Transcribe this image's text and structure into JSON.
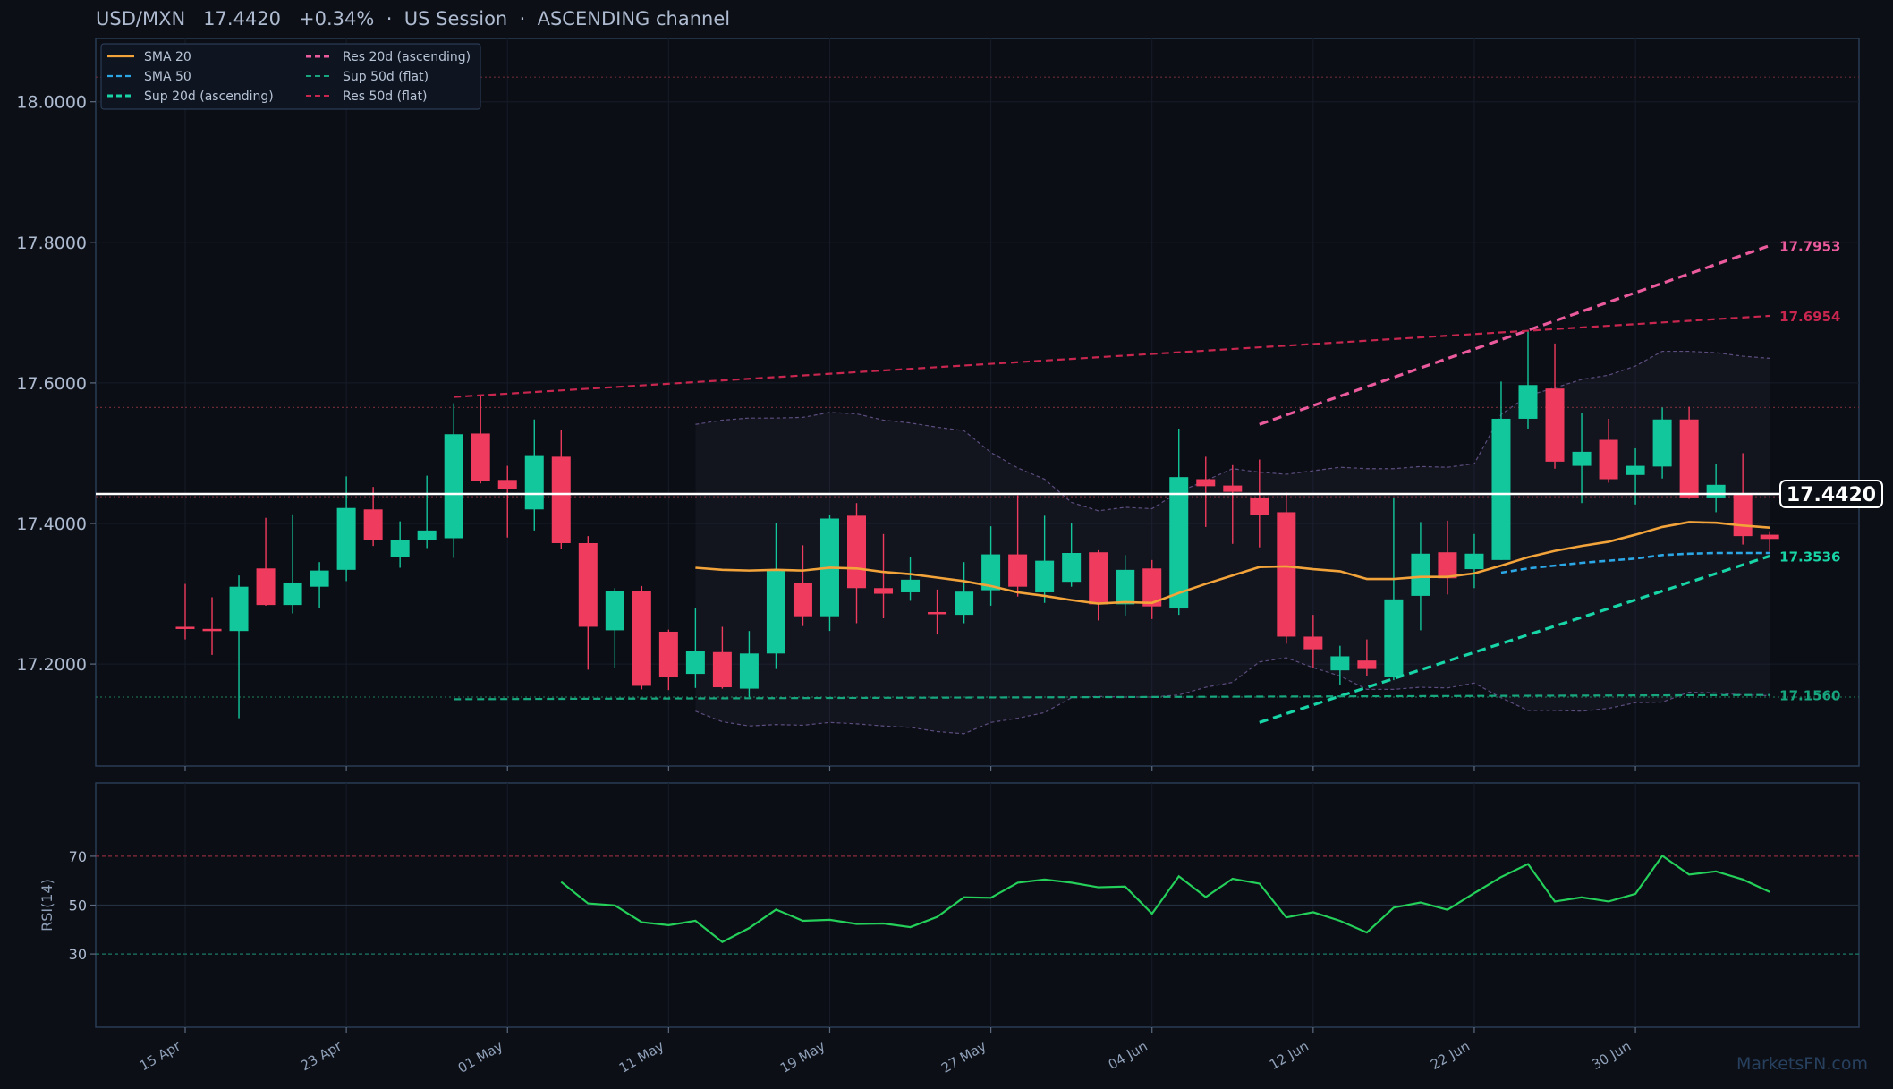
{
  "header": {
    "title": "USD/MXN   17.4420   +0.34%  ·  US Session  ·  ASCENDING channel"
  },
  "watermark": "MarketsFN.com",
  "colors": {
    "background": "#0c0f16",
    "panel_border": "#2a3b55",
    "up": "#13c79c",
    "down": "#ef3b5d",
    "sma20": "#f2a33a",
    "sma50": "#2ba7e6",
    "support_ascending": "#17d5a6",
    "resistance_ascending": "#ea5a9c",
    "support_flat": "#17a77f",
    "resistance_flat": "#c8264f",
    "rsi": "#24d05a",
    "last_price": "#ffffff"
  },
  "chart_data": [
    {
      "type": "candlestick",
      "title": "USD/MXN   17.4420   +0.34%  ·  US Session  ·  ASCENDING channel",
      "x_tick_labels": [
        "15 Apr",
        "23 Apr",
        "01 May",
        "11 May",
        "19 May",
        "27 May",
        "04 Jun",
        "12 Jun",
        "22 Jun",
        "30 Jun"
      ],
      "x_tick_index": [
        0,
        6,
        12,
        18,
        24,
        30,
        36,
        42,
        48,
        54
      ],
      "ylim": [
        17.055,
        18.09
      ],
      "y_ticks": [
        "17.2000",
        "17.4000",
        "17.6000",
        "17.8000",
        "18.0000"
      ],
      "last_price": 17.442,
      "last_price_label": "17.4420",
      "candles": [
        {
          "o": 17.253,
          "h": 17.314,
          "l": 17.235,
          "c": 17.25
        },
        {
          "o": 17.25,
          "h": 17.295,
          "l": 17.213,
          "c": 17.248
        },
        {
          "o": 17.247,
          "h": 17.326,
          "l": 17.123,
          "c": 17.31
        },
        {
          "o": 17.336,
          "h": 17.408,
          "l": 17.283,
          "c": 17.284
        },
        {
          "o": 17.284,
          "h": 17.413,
          "l": 17.272,
          "c": 17.316
        },
        {
          "o": 17.31,
          "h": 17.345,
          "l": 17.28,
          "c": 17.333
        },
        {
          "o": 17.334,
          "h": 17.467,
          "l": 17.318,
          "c": 17.422
        },
        {
          "o": 17.42,
          "h": 17.452,
          "l": 17.368,
          "c": 17.377
        },
        {
          "o": 17.352,
          "h": 17.403,
          "l": 17.337,
          "c": 17.376
        },
        {
          "o": 17.377,
          "h": 17.468,
          "l": 17.365,
          "c": 17.39
        },
        {
          "o": 17.379,
          "h": 17.571,
          "l": 17.351,
          "c": 17.527
        },
        {
          "o": 17.528,
          "h": 17.582,
          "l": 17.457,
          "c": 17.461
        },
        {
          "o": 17.462,
          "h": 17.482,
          "l": 17.38,
          "c": 17.449
        },
        {
          "o": 17.42,
          "h": 17.548,
          "l": 17.39,
          "c": 17.496
        },
        {
          "o": 17.495,
          "h": 17.533,
          "l": 17.364,
          "c": 17.372
        },
        {
          "o": 17.372,
          "h": 17.382,
          "l": 17.192,
          "c": 17.253
        },
        {
          "o": 17.248,
          "h": 17.308,
          "l": 17.195,
          "c": 17.304
        },
        {
          "o": 17.304,
          "h": 17.311,
          "l": 17.164,
          "c": 17.169
        },
        {
          "o": 17.246,
          "h": 17.249,
          "l": 17.163,
          "c": 17.181
        },
        {
          "o": 17.186,
          "h": 17.28,
          "l": 17.166,
          "c": 17.218
        },
        {
          "o": 17.217,
          "h": 17.253,
          "l": 17.165,
          "c": 17.167
        },
        {
          "o": 17.165,
          "h": 17.247,
          "l": 17.153,
          "c": 17.215
        },
        {
          "o": 17.215,
          "h": 17.401,
          "l": 17.193,
          "c": 17.333
        },
        {
          "o": 17.315,
          "h": 17.369,
          "l": 17.254,
          "c": 17.268
        },
        {
          "o": 17.268,
          "h": 17.412,
          "l": 17.247,
          "c": 17.407
        },
        {
          "o": 17.411,
          "h": 17.429,
          "l": 17.258,
          "c": 17.308
        },
        {
          "o": 17.308,
          "h": 17.385,
          "l": 17.265,
          "c": 17.3
        },
        {
          "o": 17.302,
          "h": 17.352,
          "l": 17.29,
          "c": 17.32
        },
        {
          "o": 17.274,
          "h": 17.306,
          "l": 17.242,
          "c": 17.271
        },
        {
          "o": 17.27,
          "h": 17.345,
          "l": 17.258,
          "c": 17.303
        },
        {
          "o": 17.305,
          "h": 17.396,
          "l": 17.283,
          "c": 17.356
        },
        {
          "o": 17.356,
          "h": 17.44,
          "l": 17.296,
          "c": 17.31
        },
        {
          "o": 17.302,
          "h": 17.411,
          "l": 17.287,
          "c": 17.347
        },
        {
          "o": 17.317,
          "h": 17.401,
          "l": 17.31,
          "c": 17.358
        },
        {
          "o": 17.359,
          "h": 17.362,
          "l": 17.262,
          "c": 17.285
        },
        {
          "o": 17.285,
          "h": 17.355,
          "l": 17.269,
          "c": 17.334
        },
        {
          "o": 17.336,
          "h": 17.348,
          "l": 17.264,
          "c": 17.282
        },
        {
          "o": 17.279,
          "h": 17.535,
          "l": 17.27,
          "c": 17.466
        },
        {
          "o": 17.463,
          "h": 17.495,
          "l": 17.395,
          "c": 17.453
        },
        {
          "o": 17.454,
          "h": 17.483,
          "l": 17.371,
          "c": 17.445
        },
        {
          "o": 17.437,
          "h": 17.491,
          "l": 17.366,
          "c": 17.412
        },
        {
          "o": 17.416,
          "h": 17.444,
          "l": 17.229,
          "c": 17.239
        },
        {
          "o": 17.239,
          "h": 17.27,
          "l": 17.195,
          "c": 17.221
        },
        {
          "o": 17.191,
          "h": 17.226,
          "l": 17.17,
          "c": 17.211
        },
        {
          "o": 17.205,
          "h": 17.235,
          "l": 17.183,
          "c": 17.193
        },
        {
          "o": 17.181,
          "h": 17.436,
          "l": 17.177,
          "c": 17.292
        },
        {
          "o": 17.297,
          "h": 17.402,
          "l": 17.248,
          "c": 17.357
        },
        {
          "o": 17.359,
          "h": 17.404,
          "l": 17.299,
          "c": 17.322
        },
        {
          "o": 17.335,
          "h": 17.385,
          "l": 17.308,
          "c": 17.357
        },
        {
          "o": 17.348,
          "h": 17.602,
          "l": 17.348,
          "c": 17.549
        },
        {
          "o": 17.549,
          "h": 17.675,
          "l": 17.535,
          "c": 17.597
        },
        {
          "o": 17.592,
          "h": 17.656,
          "l": 17.478,
          "c": 17.488
        },
        {
          "o": 17.482,
          "h": 17.557,
          "l": 17.429,
          "c": 17.502
        },
        {
          "o": 17.519,
          "h": 17.549,
          "l": 17.458,
          "c": 17.463
        },
        {
          "o": 17.469,
          "h": 17.507,
          "l": 17.427,
          "c": 17.482
        },
        {
          "o": 17.481,
          "h": 17.565,
          "l": 17.464,
          "c": 17.548
        },
        {
          "o": 17.548,
          "h": 17.566,
          "l": 17.435,
          "c": 17.437
        },
        {
          "o": 17.437,
          "h": 17.485,
          "l": 17.416,
          "c": 17.455
        },
        {
          "o": 17.442,
          "h": 17.5,
          "l": 17.37,
          "c": 17.382
        },
        {
          "o": 17.384,
          "h": 17.389,
          "l": 17.36,
          "c": 17.378
        }
      ],
      "sma20": {
        "start_index": 19,
        "values": [
          17.337,
          17.334,
          17.333,
          17.334,
          17.333,
          17.337,
          17.336,
          17.331,
          17.328,
          17.323,
          17.318,
          17.311,
          17.302,
          17.297,
          17.291,
          17.286,
          17.288,
          17.287,
          17.301,
          17.314,
          17.326,
          17.338,
          17.339,
          17.335,
          17.332,
          17.321,
          17.321,
          17.324,
          17.324,
          17.329,
          17.34,
          17.352,
          17.361,
          17.368,
          17.374,
          17.384,
          17.395,
          17.402,
          17.401,
          17.397,
          17.394
        ]
      },
      "sma50": {
        "start_index": 49,
        "values": [
          17.33,
          17.336,
          17.34,
          17.344,
          17.347,
          17.35,
          17.355,
          17.357,
          17.358,
          17.358,
          17.358
        ]
      },
      "bollinger": {
        "start_index": 19,
        "upper": [
          17.541,
          17.547,
          17.55,
          17.55,
          17.551,
          17.558,
          17.556,
          17.547,
          17.543,
          17.537,
          17.532,
          17.501,
          17.479,
          17.463,
          17.43,
          17.418,
          17.423,
          17.421,
          17.445,
          17.461,
          17.478,
          17.473,
          17.47,
          17.475,
          17.48,
          17.478,
          17.478,
          17.481,
          17.48,
          17.485,
          17.555,
          17.582,
          17.593,
          17.605,
          17.611,
          17.624,
          17.645,
          17.645,
          17.643,
          17.638,
          17.635
        ],
        "lower": [
          17.133,
          17.118,
          17.112,
          17.114,
          17.113,
          17.117,
          17.115,
          17.112,
          17.11,
          17.104,
          17.101,
          17.117,
          17.123,
          17.131,
          17.152,
          17.154,
          17.153,
          17.153,
          17.156,
          17.167,
          17.174,
          17.203,
          17.209,
          17.195,
          17.183,
          17.164,
          17.164,
          17.167,
          17.166,
          17.173,
          17.152,
          17.134,
          17.134,
          17.133,
          17.137,
          17.145,
          17.146,
          17.16,
          17.159,
          17.156,
          17.155
        ]
      },
      "levels": [
        {
          "name": "SMA 20",
          "style": "solid"
        },
        {
          "name": "SMA 50",
          "style": "dashed"
        },
        {
          "name": "Sup 20d (ascending)",
          "style": "dashed",
          "from": {
            "index": 40,
            "value": 17.117
          },
          "to": {
            "index": 59,
            "value": 17.3536
          },
          "label": "17.3536"
        },
        {
          "name": "Res 20d (ascending)",
          "style": "dashed",
          "from": {
            "index": 40,
            "value": 17.541
          },
          "to": {
            "index": 59,
            "value": 17.7953
          },
          "label": "17.7953"
        },
        {
          "name": "Sup 50d (flat)",
          "style": "dashed",
          "from": {
            "index": 10,
            "value": 17.15
          },
          "to": {
            "index": 59,
            "value": 17.156
          },
          "label": "17.1560"
        },
        {
          "name": "Res 50d (flat)",
          "style": "dashed",
          "from": {
            "index": 10,
            "value": 17.58
          },
          "to": {
            "index": 59,
            "value": 17.6954
          },
          "label": "17.6954"
        }
      ],
      "reference_lines": [
        18.035,
        17.565,
        17.438,
        17.153
      ],
      "legend": {
        "position": "top-left",
        "columns": 2
      }
    },
    {
      "type": "line",
      "ylabel": "RSI(14)",
      "ylim": [
        0,
        100
      ],
      "y_ticks": [
        "30",
        "50",
        "70"
      ],
      "levels": [
        70,
        50,
        30
      ],
      "series": [
        {
          "start_index": 14,
          "values": [
            59.5,
            50.7,
            49.9,
            43.0,
            41.8,
            43.6,
            34.9,
            40.6,
            48.2,
            43.6,
            44.0,
            42.3,
            42.5,
            41.0,
            45.2,
            53.2,
            53.0,
            59.2,
            60.5,
            59.2,
            57.3,
            57.6,
            46.5,
            61.8,
            53.3,
            60.8,
            58.8,
            45.0,
            47.1,
            43.6,
            38.8,
            49.0,
            51.1,
            48.1,
            54.9,
            61.5,
            66.8,
            51.5,
            53.2,
            51.5,
            54.6,
            70.2,
            62.5,
            63.8,
            60.5,
            55.4
          ]
        }
      ]
    }
  ]
}
